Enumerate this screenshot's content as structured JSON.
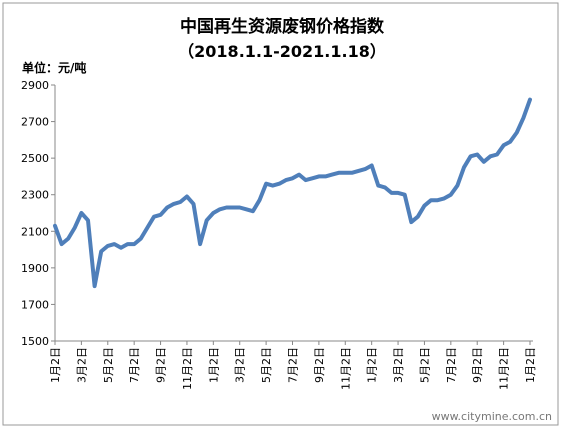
{
  "chart_data": {
    "type": "line",
    "title": "中国再生资源废钢价格指数",
    "subtitle": "（2018.1.1-2021.1.18）",
    "unit_label": "单位：元/吨",
    "watermark": "www.citymine.com.cn",
    "categories": [
      "1月2日",
      null,
      null,
      null,
      "3月2日",
      null,
      null,
      null,
      "5月2日",
      null,
      null,
      null,
      "7月2日",
      null,
      null,
      null,
      "9月2日",
      null,
      null,
      null,
      "11月2日",
      null,
      null,
      null,
      "1月2日",
      null,
      null,
      null,
      "3月2日",
      null,
      null,
      null,
      "5月2日",
      null,
      null,
      null,
      "7月2日",
      null,
      null,
      null,
      "9月2日",
      null,
      null,
      null,
      "11月2日",
      null,
      null,
      null,
      "1月2日",
      null,
      null,
      null,
      "3月2日",
      null,
      null,
      null,
      "5月2日",
      null,
      null,
      null,
      "7月2日",
      null,
      null,
      null,
      "9月2日",
      null,
      null,
      null,
      "11月2日",
      null,
      null,
      null,
      "1月2日"
    ],
    "values": [
      2130,
      2030,
      2060,
      2120,
      2200,
      2160,
      1800,
      1990,
      2020,
      2030,
      2010,
      2030,
      2030,
      2060,
      2120,
      2180,
      2190,
      2230,
      2250,
      2260,
      2290,
      2250,
      2030,
      2160,
      2200,
      2220,
      2230,
      2230,
      2230,
      2220,
      2210,
      2270,
      2360,
      2350,
      2360,
      2380,
      2390,
      2410,
      2380,
      2390,
      2400,
      2400,
      2410,
      2420,
      2420,
      2420,
      2430,
      2440,
      2460,
      2350,
      2340,
      2310,
      2310,
      2300,
      2150,
      2180,
      2240,
      2270,
      2270,
      2280,
      2300,
      2350,
      2450,
      2510,
      2520,
      2480,
      2510,
      2520,
      2570,
      2590,
      2640,
      2720,
      2820
    ],
    "color": "#4f7fba",
    "ylim": [
      1500,
      2900
    ],
    "yticks": [
      1500,
      1700,
      1900,
      2100,
      2300,
      2500,
      2700,
      2900
    ],
    "grid": false
  }
}
